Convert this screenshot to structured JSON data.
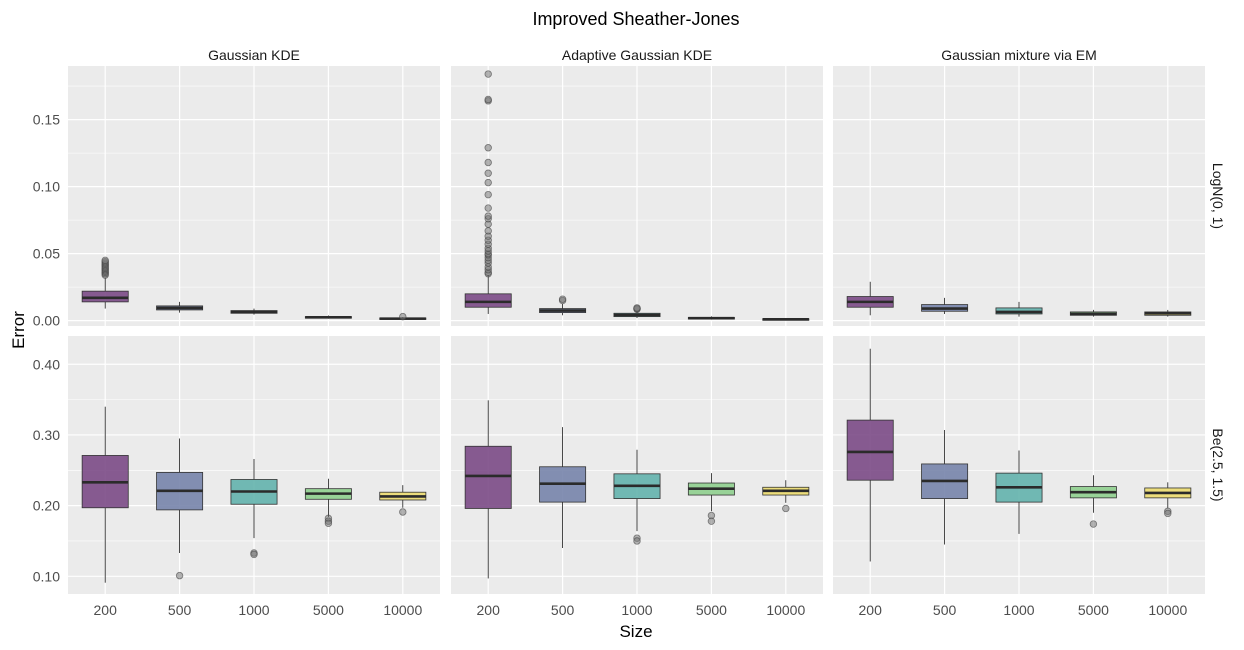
{
  "chart_data": {
    "type": "boxplot",
    "title": "Improved Sheather-Jones",
    "xlabel": "Size",
    "ylabel": "Error",
    "categories": [
      "200",
      "500",
      "1000",
      "5000",
      "10000"
    ],
    "colors": [
      "#7b4a86",
      "#7784ab",
      "#63b3ad",
      "#8fcf8e",
      "#ecdc6f"
    ],
    "columns": [
      "Gaussian KDE",
      "Adaptive Gaussian KDE",
      "Gaussian mixture via EM"
    ],
    "rows": [
      {
        "label": "LogN(0, 1)",
        "ylim": [
          -0.004,
          0.19
        ],
        "yticks": [
          0.0,
          0.05,
          0.1,
          0.15
        ],
        "tick_labels": [
          "0.00",
          "0.05",
          "0.10",
          "0.15"
        ],
        "panels": [
          {
            "column": "Gaussian KDE",
            "boxes": [
              {
                "size": "200",
                "whisker_low": 0.009,
                "q1": 0.014,
                "median": 0.017,
                "q3": 0.022,
                "whisker_high": 0.032,
                "outliers": [
                  0.034,
                  0.035,
                  0.036,
                  0.037,
                  0.038,
                  0.039,
                  0.04,
                  0.041,
                  0.042,
                  0.043,
                  0.044,
                  0.045
                ]
              },
              {
                "size": "500",
                "whisker_low": 0.006,
                "q1": 0.008,
                "median": 0.0095,
                "q3": 0.011,
                "whisker_high": 0.014,
                "outliers": []
              },
              {
                "size": "1000",
                "whisker_low": 0.0045,
                "q1": 0.0055,
                "median": 0.0065,
                "q3": 0.0075,
                "whisker_high": 0.009,
                "outliers": []
              },
              {
                "size": "5000",
                "whisker_low": 0.0015,
                "q1": 0.002,
                "median": 0.0025,
                "q3": 0.003,
                "whisker_high": 0.0038,
                "outliers": []
              },
              {
                "size": "10000",
                "whisker_low": 0.0008,
                "q1": 0.001,
                "median": 0.0015,
                "q3": 0.002,
                "whisker_high": 0.0027,
                "outliers": [
                  0.003
                ]
              }
            ]
          },
          {
            "column": "Adaptive Gaussian KDE",
            "boxes": [
              {
                "size": "200",
                "whisker_low": 0.005,
                "q1": 0.01,
                "median": 0.014,
                "q3": 0.02,
                "whisker_high": 0.034,
                "outliers": [
                  0.035,
                  0.036,
                  0.038,
                  0.04,
                  0.043,
                  0.045,
                  0.047,
                  0.049,
                  0.05,
                  0.052,
                  0.054,
                  0.057,
                  0.06,
                  0.063,
                  0.067,
                  0.072,
                  0.076,
                  0.078,
                  0.084,
                  0.094,
                  0.103,
                  0.11,
                  0.118,
                  0.129,
                  0.164,
                  0.165,
                  0.184
                ]
              },
              {
                "size": "500",
                "whisker_low": 0.004,
                "q1": 0.006,
                "median": 0.0075,
                "q3": 0.009,
                "whisker_high": 0.0125,
                "outliers": [
                  0.015,
                  0.016
                ]
              },
              {
                "size": "1000",
                "whisker_low": 0.002,
                "q1": 0.003,
                "median": 0.0042,
                "q3": 0.0055,
                "whisker_high": 0.0072,
                "outliers": [
                  0.0085,
                  0.009,
                  0.0095
                ]
              },
              {
                "size": "5000",
                "whisker_low": 0.0008,
                "q1": 0.0012,
                "median": 0.0018,
                "q3": 0.0024,
                "whisker_high": 0.0032,
                "outliers": []
              },
              {
                "size": "10000",
                "whisker_low": 0.0004,
                "q1": 0.0007,
                "median": 0.001,
                "q3": 0.0014,
                "whisker_high": 0.0019,
                "outliers": []
              }
            ]
          },
          {
            "column": "Gaussian mixture via EM",
            "boxes": [
              {
                "size": "200",
                "whisker_low": 0.004,
                "q1": 0.01,
                "median": 0.014,
                "q3": 0.018,
                "whisker_high": 0.029,
                "outliers": []
              },
              {
                "size": "500",
                "whisker_low": 0.005,
                "q1": 0.007,
                "median": 0.009,
                "q3": 0.012,
                "whisker_high": 0.017,
                "outliers": []
              },
              {
                "size": "1000",
                "whisker_low": 0.003,
                "q1": 0.005,
                "median": 0.0065,
                "q3": 0.0095,
                "whisker_high": 0.014,
                "outliers": []
              },
              {
                "size": "5000",
                "whisker_low": 0.003,
                "q1": 0.004,
                "median": 0.005,
                "q3": 0.0065,
                "whisker_high": 0.008,
                "outliers": []
              },
              {
                "size": "10000",
                "whisker_low": 0.003,
                "q1": 0.004,
                "median": 0.0055,
                "q3": 0.0065,
                "whisker_high": 0.008,
                "outliers": []
              }
            ]
          }
        ]
      },
      {
        "label": "Be(2.5, 1.5)",
        "ylim": [
          0.075,
          0.44
        ],
        "yticks": [
          0.1,
          0.2,
          0.3,
          0.4
        ],
        "tick_labels": [
          "0.10",
          "0.20",
          "0.30",
          "0.40"
        ],
        "panels": [
          {
            "column": "Gaussian KDE",
            "boxes": [
              {
                "size": "200",
                "whisker_low": 0.091,
                "q1": 0.197,
                "median": 0.233,
                "q3": 0.271,
                "whisker_high": 0.34,
                "outliers": []
              },
              {
                "size": "500",
                "whisker_low": 0.133,
                "q1": 0.194,
                "median": 0.221,
                "q3": 0.247,
                "whisker_high": 0.295,
                "outliers": [
                  0.101
                ]
              },
              {
                "size": "1000",
                "whisker_low": 0.154,
                "q1": 0.202,
                "median": 0.22,
                "q3": 0.237,
                "whisker_high": 0.266,
                "outliers": [
                  0.133,
                  0.131
                ]
              },
              {
                "size": "5000",
                "whisker_low": 0.184,
                "q1": 0.209,
                "median": 0.217,
                "q3": 0.224,
                "whisker_high": 0.238,
                "outliers": [
                  0.182,
                  0.178,
                  0.175
                ]
              },
              {
                "size": "10000",
                "whisker_low": 0.197,
                "q1": 0.208,
                "median": 0.213,
                "q3": 0.219,
                "whisker_high": 0.229,
                "outliers": [
                  0.191
                ]
              }
            ]
          },
          {
            "column": "Adaptive Gaussian KDE",
            "boxes": [
              {
                "size": "200",
                "whisker_low": 0.097,
                "q1": 0.196,
                "median": 0.242,
                "q3": 0.284,
                "whisker_high": 0.349,
                "outliers": []
              },
              {
                "size": "500",
                "whisker_low": 0.14,
                "q1": 0.205,
                "median": 0.231,
                "q3": 0.255,
                "whisker_high": 0.311,
                "outliers": []
              },
              {
                "size": "1000",
                "whisker_low": 0.164,
                "q1": 0.21,
                "median": 0.228,
                "q3": 0.245,
                "whisker_high": 0.279,
                "outliers": [
                  0.154,
                  0.15
                ]
              },
              {
                "size": "5000",
                "whisker_low": 0.192,
                "q1": 0.215,
                "median": 0.224,
                "q3": 0.232,
                "whisker_high": 0.246,
                "outliers": [
                  0.186,
                  0.178
                ]
              },
              {
                "size": "10000",
                "whisker_low": 0.204,
                "q1": 0.215,
                "median": 0.221,
                "q3": 0.226,
                "whisker_high": 0.236,
                "outliers": [
                  0.196
                ]
              }
            ]
          },
          {
            "column": "Gaussian mixture via EM",
            "boxes": [
              {
                "size": "200",
                "whisker_low": 0.121,
                "q1": 0.236,
                "median": 0.276,
                "q3": 0.321,
                "whisker_high": 0.422,
                "outliers": []
              },
              {
                "size": "500",
                "whisker_low": 0.145,
                "q1": 0.21,
                "median": 0.235,
                "q3": 0.259,
                "whisker_high": 0.307,
                "outliers": []
              },
              {
                "size": "1000",
                "whisker_low": 0.16,
                "q1": 0.205,
                "median": 0.226,
                "q3": 0.246,
                "whisker_high": 0.278,
                "outliers": []
              },
              {
                "size": "5000",
                "whisker_low": 0.19,
                "q1": 0.211,
                "median": 0.219,
                "q3": 0.227,
                "whisker_high": 0.243,
                "outliers": [
                  0.174
                ]
              },
              {
                "size": "10000",
                "whisker_low": 0.196,
                "q1": 0.211,
                "median": 0.218,
                "q3": 0.225,
                "whisker_high": 0.233,
                "outliers": [
                  0.192,
                  0.189
                ]
              }
            ]
          }
        ]
      }
    ],
    "grid": true,
    "legend": "none"
  }
}
